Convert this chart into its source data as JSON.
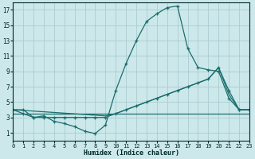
{
  "xlabel": "Humidex (Indice chaleur)",
  "bg_color": "#cce8ea",
  "grid_color": "#aaccd0",
  "line_color": "#1a6e6e",
  "xlim": [
    0,
    23
  ],
  "ylim": [
    0,
    18
  ],
  "xticks": [
    0,
    1,
    2,
    3,
    4,
    5,
    6,
    7,
    8,
    9,
    10,
    11,
    12,
    13,
    14,
    15,
    16,
    17,
    18,
    19,
    20,
    21,
    22,
    23
  ],
  "yticks": [
    1,
    3,
    5,
    7,
    9,
    11,
    13,
    15,
    17
  ],
  "curve1": {
    "x": [
      0,
      1,
      2,
      3,
      4,
      5,
      6,
      7,
      8,
      9,
      10,
      11,
      12,
      13,
      14,
      15,
      16,
      17,
      18,
      19,
      20,
      21,
      22,
      23
    ],
    "y": [
      4,
      4,
      3,
      3.2,
      2.5,
      2.2,
      1.8,
      1.2,
      0.9,
      2.0,
      6.5,
      10,
      13,
      15.5,
      16.5,
      17.3,
      17.5,
      12,
      9.5,
      9.2,
      9,
      5.5,
      4,
      4
    ],
    "marker": true
  },
  "curve2": {
    "x": [
      0,
      1,
      2,
      3,
      4,
      5,
      6,
      7,
      8,
      9,
      10,
      11,
      12,
      13,
      14,
      15,
      16,
      17,
      18,
      19,
      20,
      21,
      22,
      23
    ],
    "y": [
      4,
      3.5,
      3.0,
      3.0,
      3.0,
      3.0,
      3.0,
      3.0,
      3.0,
      3.0,
      3.5,
      4.0,
      4.5,
      5.0,
      5.5,
      6.0,
      6.5,
      7.0,
      7.5,
      8.0,
      9.5,
      6.5,
      4,
      4
    ],
    "marker": true
  },
  "curve3": {
    "x": [
      0,
      9,
      10,
      11,
      12,
      13,
      14,
      15,
      16,
      17,
      18,
      19,
      20,
      21,
      22,
      23
    ],
    "y": [
      4,
      3.2,
      3.5,
      4.0,
      4.5,
      5.0,
      5.5,
      6.0,
      6.5,
      7.0,
      7.5,
      8.0,
      9.5,
      6,
      4,
      4
    ],
    "marker": false
  },
  "curve4": {
    "x": [
      0,
      9,
      10,
      11,
      22,
      23
    ],
    "y": [
      3.5,
      3.5,
      3.5,
      3.5,
      3.5,
      3.5
    ],
    "marker": false
  }
}
